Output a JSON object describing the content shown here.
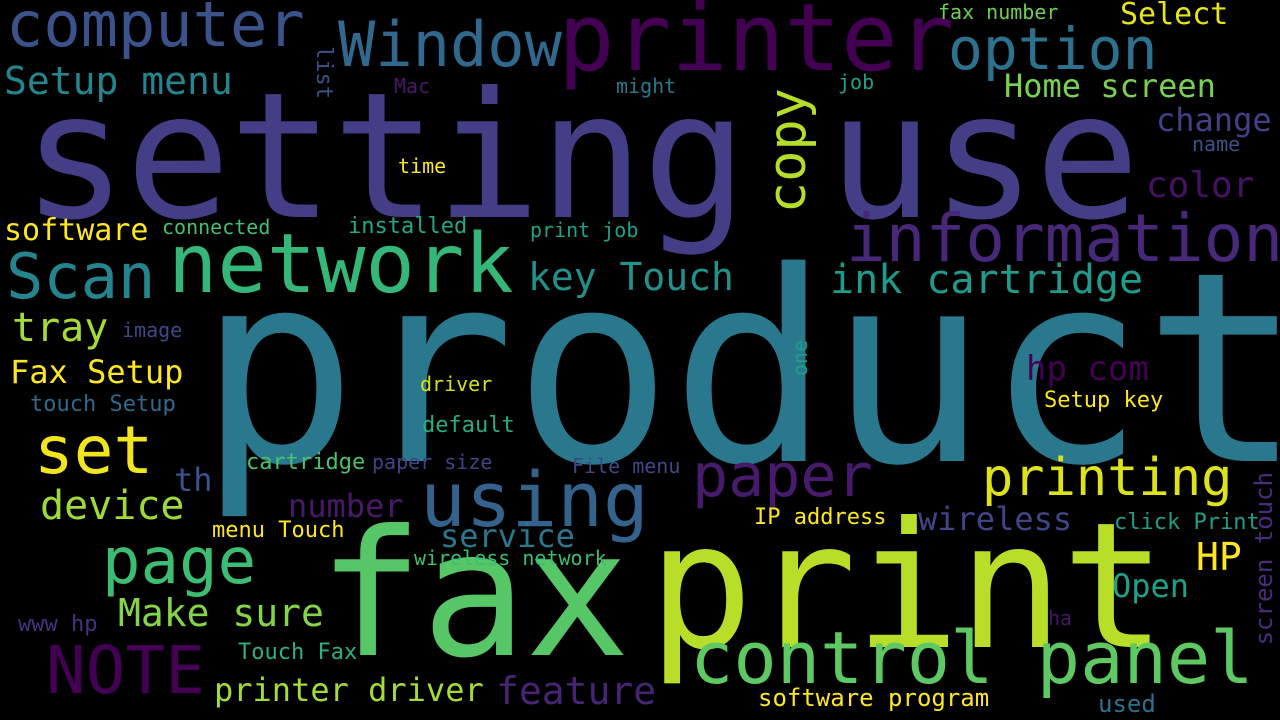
{
  "words": [
    {
      "text": "product",
      "color": "#2a788e"
    },
    {
      "text": "setting",
      "color": "#433e85"
    },
    {
      "text": "use",
      "color": "#433e85"
    },
    {
      "text": "fax",
      "color": "#56c667"
    },
    {
      "text": "print",
      "color": "#b8de29"
    },
    {
      "text": "printer",
      "color": "#440154"
    },
    {
      "text": "computer",
      "color": "#3b528b"
    },
    {
      "text": "Window",
      "color": "#31688e"
    },
    {
      "text": "option",
      "color": "#2c728e"
    },
    {
      "text": "Setup menu",
      "color": "#25858e"
    },
    {
      "text": "list",
      "color": "#3b528b"
    },
    {
      "text": "Mac",
      "color": "#481769"
    },
    {
      "text": "might",
      "color": "#2a788e"
    },
    {
      "text": "job",
      "color": "#20a386"
    },
    {
      "text": "fax number",
      "color": "#6ece58"
    },
    {
      "text": "Select",
      "color": "#e7e419"
    },
    {
      "text": "Home screen",
      "color": "#7ad151"
    },
    {
      "text": "change",
      "color": "#424086"
    },
    {
      "text": "name",
      "color": "#3b528b"
    },
    {
      "text": "copy",
      "color": "#b5de2b"
    },
    {
      "text": "time",
      "color": "#fde725"
    },
    {
      "text": "color",
      "color": "#471164"
    },
    {
      "text": "information",
      "color": "#482878"
    },
    {
      "text": "network",
      "color": "#35b779"
    },
    {
      "text": "software",
      "color": "#fde725"
    },
    {
      "text": "connected",
      "color": "#44bf70"
    },
    {
      "text": "installed",
      "color": "#22a884"
    },
    {
      "text": "print job",
      "color": "#1fa187"
    },
    {
      "text": "Scan",
      "color": "#25858e"
    },
    {
      "text": "key Touch",
      "color": "#21918c"
    },
    {
      "text": "ink cartridge",
      "color": "#1e9b8a"
    },
    {
      "text": "tray",
      "color": "#a5db36"
    },
    {
      "text": "image",
      "color": "#3e4989"
    },
    {
      "text": "Fax Setup",
      "color": "#fde725"
    },
    {
      "text": "one",
      "color": "#1f9e89"
    },
    {
      "text": "driver",
      "color": "#d2e21b"
    },
    {
      "text": "hp com",
      "color": "#440154"
    },
    {
      "text": "touch Setup",
      "color": "#31688e"
    },
    {
      "text": "default",
      "color": "#27ad81"
    },
    {
      "text": "Setup key",
      "color": "#fde725"
    },
    {
      "text": "set",
      "color": "#f1e51d"
    },
    {
      "text": "cartridge",
      "color": "#4ac16d"
    },
    {
      "text": "paper size",
      "color": "#414487"
    },
    {
      "text": "File menu",
      "color": "#3e4989"
    },
    {
      "text": "paper",
      "color": "#481a6c"
    },
    {
      "text": "printing",
      "color": "#dde318"
    },
    {
      "text": "using",
      "color": "#33638d"
    },
    {
      "text": "th",
      "color": "#3b528b"
    },
    {
      "text": "device",
      "color": "#a0da39"
    },
    {
      "text": "number",
      "color": "#48186a"
    },
    {
      "text": "service",
      "color": "#2a788e"
    },
    {
      "text": "IP address",
      "color": "#fde725"
    },
    {
      "text": "wireless",
      "color": "#414487"
    },
    {
      "text": "click Print",
      "color": "#1f9e89"
    },
    {
      "text": "screen touch",
      "color": "#472d7b"
    },
    {
      "text": "menu Touch",
      "color": "#fde725"
    },
    {
      "text": "page",
      "color": "#3dbc74"
    },
    {
      "text": "wireless network",
      "color": "#3dbc74"
    },
    {
      "text": "HP",
      "color": "#fde725"
    },
    {
      "text": "Open",
      "color": "#1fa187"
    },
    {
      "text": "www hp",
      "color": "#46327e"
    },
    {
      "text": "Make sure",
      "color": "#86d549"
    },
    {
      "text": "ha",
      "color": "#481769"
    },
    {
      "text": "NOTE",
      "color": "#440154"
    },
    {
      "text": "Touch Fax",
      "color": "#2db27d"
    },
    {
      "text": "control panel",
      "color": "#5ec962"
    },
    {
      "text": "printer driver",
      "color": "#a5db36"
    },
    {
      "text": "feature",
      "color": "#482475"
    },
    {
      "text": "software program",
      "color": "#fde725"
    },
    {
      "text": "used",
      "color": "#2c728e"
    }
  ]
}
